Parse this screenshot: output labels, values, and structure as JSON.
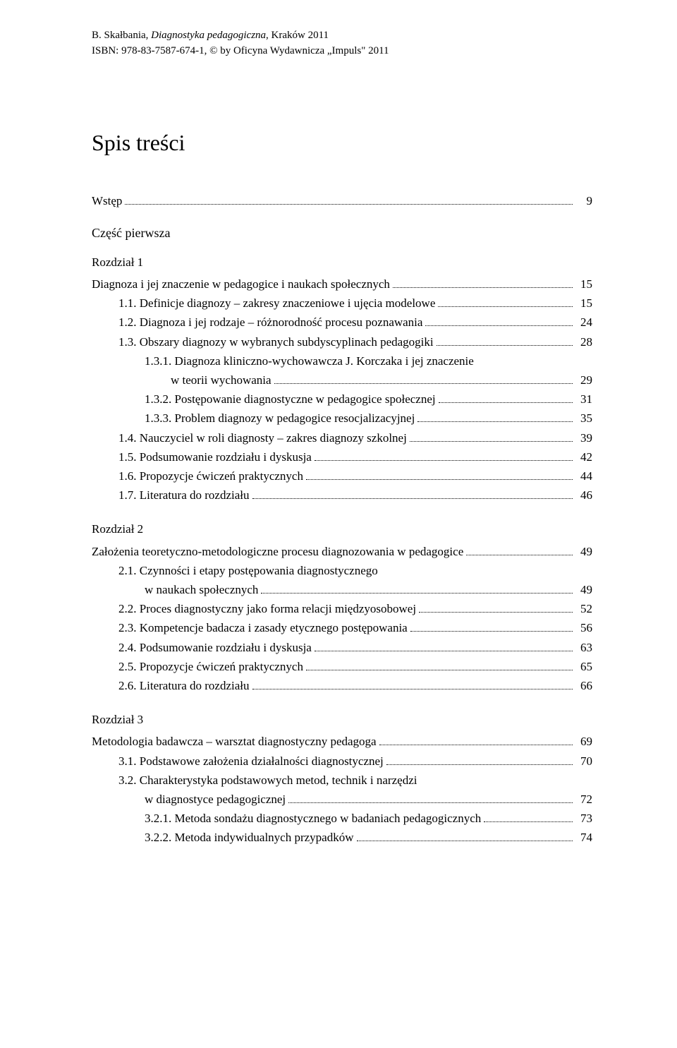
{
  "header": {
    "line1_pre": "B. Skałbania, ",
    "line1_em": "Diagnostyka pedagogiczna",
    "line1_post": ", Kraków 2011",
    "line2": "ISBN: 978-83-7587-674-1, © by Oficyna Wydawnicza „Impuls\" 2011"
  },
  "title": "Spis treści",
  "wstep": {
    "label": "Wstęp",
    "page": "9"
  },
  "part1": "Część pierwsza",
  "ch1": {
    "heading": "Rozdział 1",
    "title_a": "Diagnoza i jej znaczenie w pedagogice i naukach społecznych",
    "title_page": "15",
    "items": [
      {
        "label": "1.1. Definicje diagnozy – zakresy znaczeniowe i ujęcia modelowe",
        "page": "15",
        "indent": 1
      },
      {
        "label": "1.2. Diagnoza i jej rodzaje – różnorodność procesu poznawania",
        "page": "24",
        "indent": 1
      },
      {
        "label": "1.3. Obszary diagnozy w wybranych subdyscyplinach pedagogiki",
        "page": "28",
        "indent": 1
      },
      {
        "label": "1.3.1. Diagnoza kliniczno-wychowawcza J. Korczaka i jej znaczenie",
        "cont": "w teorii wychowania",
        "page": "29",
        "indent": 2
      },
      {
        "label": "1.3.2. Postępowanie diagnostyczne w pedagogice społecznej",
        "page": "31",
        "indent": 2
      },
      {
        "label": "1.3.3. Problem diagnozy w pedagogice resocjalizacyjnej",
        "page": "35",
        "indent": 2
      },
      {
        "label": "1.4. Nauczyciel w roli diagnosty – zakres diagnozy szkolnej",
        "page": "39",
        "indent": 1
      },
      {
        "label": "1.5. Podsumowanie rozdziału i dyskusja",
        "page": "42",
        "indent": 1
      },
      {
        "label": "1.6. Propozycje ćwiczeń praktycznych",
        "page": "44",
        "indent": 1
      },
      {
        "label": "1.7. Literatura do rozdziału",
        "page": "46",
        "indent": 1
      }
    ]
  },
  "ch2": {
    "heading": "Rozdział 2",
    "title_a": "Założenia teoretyczno-metodologiczne procesu diagnozowania w pedagogice",
    "title_page": "49",
    "items": [
      {
        "label": "2.1. Czynności i etapy postępowania diagnostycznego",
        "cont": "w naukach społecznych",
        "page": "49",
        "indent": 1
      },
      {
        "label": "2.2. Proces diagnostyczny jako forma relacji międzyosobowej",
        "page": "52",
        "indent": 1
      },
      {
        "label": "2.3. Kompetencje badacza i zasady etycznego postępowania",
        "page": "56",
        "indent": 1
      },
      {
        "label": "2.4. Podsumowanie rozdziału i dyskusja",
        "page": "63",
        "indent": 1
      },
      {
        "label": "2.5. Propozycje ćwiczeń praktycznych",
        "page": "65",
        "indent": 1
      },
      {
        "label": "2.6. Literatura do rozdziału",
        "page": "66",
        "indent": 1
      }
    ]
  },
  "ch3": {
    "heading": "Rozdział 3",
    "title_a": "Metodologia badawcza – warsztat diagnostyczny pedagoga",
    "title_page": "69",
    "items": [
      {
        "label": "3.1. Podstawowe założenia działalności diagnostycznej",
        "page": "70",
        "indent": 1
      },
      {
        "label": "3.2. Charakterystyka podstawowych metod, technik i narzędzi",
        "cont": "w diagnostyce pedagogicznej",
        "page": "72",
        "indent": 1
      },
      {
        "label": "3.2.1. Metoda sondażu diagnostycznego w badaniach pedagogicznych",
        "page": "73",
        "indent": 2
      },
      {
        "label": "3.2.2. Metoda indywidualnych przypadków",
        "page": "74",
        "indent": 2
      }
    ]
  }
}
